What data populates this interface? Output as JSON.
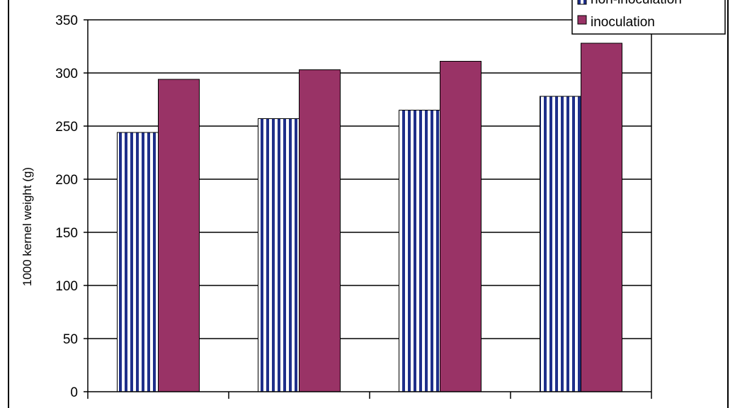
{
  "chart_data": {
    "type": "bar",
    "ylabel": "1000 kernel weight  (g)",
    "ylim": [
      0,
      350
    ],
    "yticks": [
      0,
      50,
      100,
      150,
      200,
      250,
      300,
      350
    ],
    "grid": true,
    "legend_position": "top-right",
    "series": [
      {
        "name": "non-inoculation",
        "values": [
          244,
          257,
          265,
          278
        ],
        "color": "#1f2f8a",
        "pattern": "vertical-stripes"
      },
      {
        "name": "inoculation",
        "values": [
          294,
          303,
          311,
          328
        ],
        "color": "#993366"
      }
    ]
  }
}
